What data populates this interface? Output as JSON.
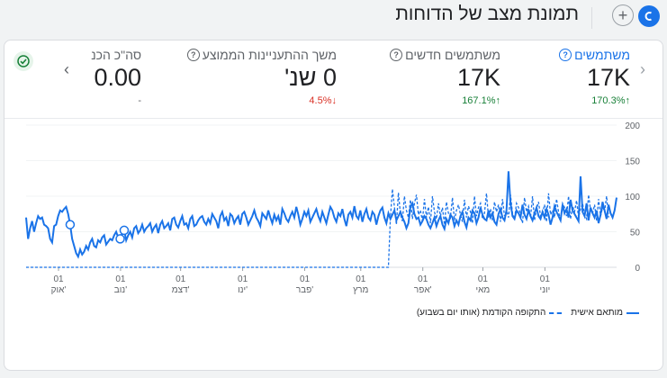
{
  "header": {
    "title": "תמונת מצב של הדוחות",
    "add_symbol": "+",
    "avatar_letter": "כ"
  },
  "metrics": [
    {
      "label": "משתמשים",
      "value": "17K",
      "change": "170.3%",
      "direction": "up",
      "selected": true
    },
    {
      "label": "משתמשים חדשים",
      "value": "17K",
      "change": "167.1%",
      "direction": "up",
      "selected": false
    },
    {
      "label": "משך ההתעניינות הממוצע",
      "value": "0 שנ'",
      "change": "4.5%",
      "direction": "down",
      "selected": false
    },
    {
      "label": "סה\"כ הכנ",
      "value": "0.00",
      "change": "-",
      "direction": "none",
      "selected": false
    }
  ],
  "colors": {
    "accent": "#1a73e8",
    "up": "#188038",
    "down": "#d93025"
  },
  "chart_data": {
    "type": "line",
    "y_ticks": [
      0,
      50,
      100,
      150,
      200
    ],
    "ylim": [
      0,
      200
    ],
    "x_ticks": [
      {
        "day": "01",
        "month": "אוק'",
        "i": 0
      },
      {
        "day": "01",
        "month": "נוב'",
        "i": 31
      },
      {
        "day": "01",
        "month": "דצמ'",
        "i": 61
      },
      {
        "day": "01",
        "month": "ינו'",
        "i": 92
      },
      {
        "day": "01",
        "month": "פבר'",
        "i": 123
      },
      {
        "day": "01",
        "month": "מרץ",
        "i": 151
      },
      {
        "day": "01",
        "month": "אפר'",
        "i": 182
      },
      {
        "day": "01",
        "month": "מאי",
        "i": 212
      },
      {
        "day": "01",
        "month": "יוני",
        "i": 243
      }
    ],
    "series": [
      {
        "name": "מותאם אישית",
        "style": "solid",
        "values": [
          70,
          40,
          55,
          65,
          50,
          62,
          72,
          68,
          70,
          60,
          58,
          55,
          40,
          35,
          58,
          60,
          72,
          80,
          78,
          82,
          85,
          75,
          60,
          40,
          30,
          20,
          15,
          25,
          18,
          22,
          30,
          25,
          35,
          40,
          30,
          28,
          38,
          35,
          42,
          45,
          32,
          36,
          40,
          38,
          45,
          50,
          42,
          40,
          48,
          52,
          38,
          45,
          50,
          42,
          55,
          58,
          48,
          52,
          60,
          50,
          55,
          58,
          62,
          50,
          56,
          60,
          48,
          60,
          65,
          55,
          58,
          62,
          52,
          68,
          70,
          60,
          56,
          65,
          72,
          60,
          62,
          55,
          68,
          72,
          58,
          60,
          66,
          70,
          72,
          64,
          60,
          68,
          62,
          75,
          70,
          65,
          55,
          72,
          78,
          66,
          70,
          58,
          75,
          72,
          62,
          68,
          72,
          60,
          75,
          78,
          70,
          60,
          66,
          72,
          80,
          70,
          65,
          58,
          76,
          72,
          68,
          80,
          70,
          62,
          74,
          66,
          72,
          60,
          82,
          76,
          68,
          64,
          72,
          78,
          70,
          85,
          74,
          60,
          68,
          78,
          72,
          80,
          64,
          70,
          76,
          82,
          72,
          65,
          78,
          70,
          62,
          74,
          85,
          80,
          70,
          64,
          76,
          72,
          82,
          68,
          58,
          74,
          78,
          70,
          86,
          72,
          68,
          80,
          64,
          75,
          82,
          70,
          66,
          78,
          74,
          60,
          72,
          80,
          84,
          70,
          62,
          76,
          68,
          74,
          80,
          66,
          72,
          78,
          70,
          64,
          55,
          62,
          85,
          90,
          75,
          68,
          70,
          60,
          65,
          72,
          68,
          60,
          55,
          62,
          70,
          58,
          66,
          72,
          60,
          54,
          68,
          62,
          74,
          70,
          58,
          66,
          60,
          72,
          78,
          64,
          56,
          70,
          66,
          80,
          76,
          62,
          70,
          84,
          74,
          68,
          66,
          80,
          70,
          76,
          64,
          60,
          75,
          82,
          70,
          66,
          80,
          135,
          90,
          72,
          68,
          80,
          76,
          70,
          88,
          74,
          68,
          80,
          72,
          66,
          76,
          84,
          72,
          68,
          78,
          70,
          82,
          74,
          60,
          70,
          86,
          78,
          72,
          66,
          88,
          76,
          82,
          70,
          95,
          80,
          75,
          70,
          65,
          128,
          78,
          72,
          90,
          66,
          84,
          76,
          70,
          80,
          62,
          74,
          92,
          80,
          68,
          88,
          76,
          70,
          80,
          98
        ]
      },
      {
        "name": "התקופה הקודמת (אותו יום בשבוע)",
        "style": "dashed",
        "values": [
          0,
          0,
          0,
          0,
          0,
          0,
          0,
          0,
          0,
          0,
          0,
          0,
          0,
          0,
          0,
          0,
          0,
          0,
          0,
          0,
          0,
          0,
          0,
          0,
          0,
          0,
          0,
          0,
          0,
          0,
          0,
          0,
          0,
          0,
          0,
          0,
          0,
          0,
          0,
          0,
          0,
          0,
          0,
          0,
          0,
          0,
          0,
          0,
          0,
          0,
          0,
          0,
          0,
          0,
          0,
          0,
          0,
          0,
          0,
          0,
          0,
          0,
          0,
          0,
          0,
          0,
          0,
          0,
          0,
          0,
          0,
          0,
          0,
          0,
          0,
          0,
          0,
          0,
          0,
          0,
          0,
          0,
          0,
          0,
          0,
          0,
          0,
          0,
          0,
          0,
          0,
          0,
          0,
          0,
          0,
          0,
          0,
          0,
          0,
          0,
          0,
          0,
          0,
          0,
          0,
          0,
          0,
          0,
          0,
          0,
          0,
          0,
          0,
          0,
          0,
          0,
          0,
          0,
          0,
          0,
          0,
          0,
          0,
          0,
          0,
          0,
          0,
          0,
          0,
          0,
          0,
          0,
          0,
          0,
          0,
          0,
          0,
          0,
          0,
          0,
          0,
          0,
          0,
          0,
          0,
          0,
          0,
          0,
          0,
          0,
          0,
          0,
          0,
          0,
          0,
          0,
          0,
          0,
          0,
          0,
          0,
          0,
          0,
          0,
          0,
          0,
          0,
          0,
          0,
          0,
          0,
          0,
          0,
          0,
          0,
          0,
          0,
          0,
          0,
          0,
          0,
          0,
          70,
          110,
          85,
          60,
          105,
          75,
          65,
          100,
          80,
          70,
          95,
          68,
          90,
          102,
          74,
          80,
          65,
          96,
          70,
          85,
          62,
          100,
          78,
          68,
          90,
          72,
          84,
          60,
          92,
          76,
          70,
          98,
          66,
          80,
          88,
          74,
          64,
          95,
          70,
          86,
          78,
          62,
          100,
          72,
          84,
          90,
          68,
          76,
          104,
          70,
          82,
          66,
          92,
          78,
          88,
          64,
          96,
          72,
          80,
          70,
          102,
          76,
          68,
          90,
          84,
          74,
          62,
          98,
          78,
          86,
          70,
          100,
          66,
          82,
          92,
          72,
          76,
          88,
          64,
          104,
          74,
          80,
          70,
          96,
          78,
          66,
          90,
          84,
          72,
          100,
          68,
          86,
          78,
          94,
          70,
          82,
          90,
          74,
          68,
          102,
          80,
          76,
          88,
          66,
          96,
          72,
          84,
          78,
          100,
          70
        ]
      }
    ]
  },
  "legend": {
    "solid_label": "מותאם אישית",
    "dashed_label": "התקופה הקודמת (אותו יום בשבוע)"
  }
}
